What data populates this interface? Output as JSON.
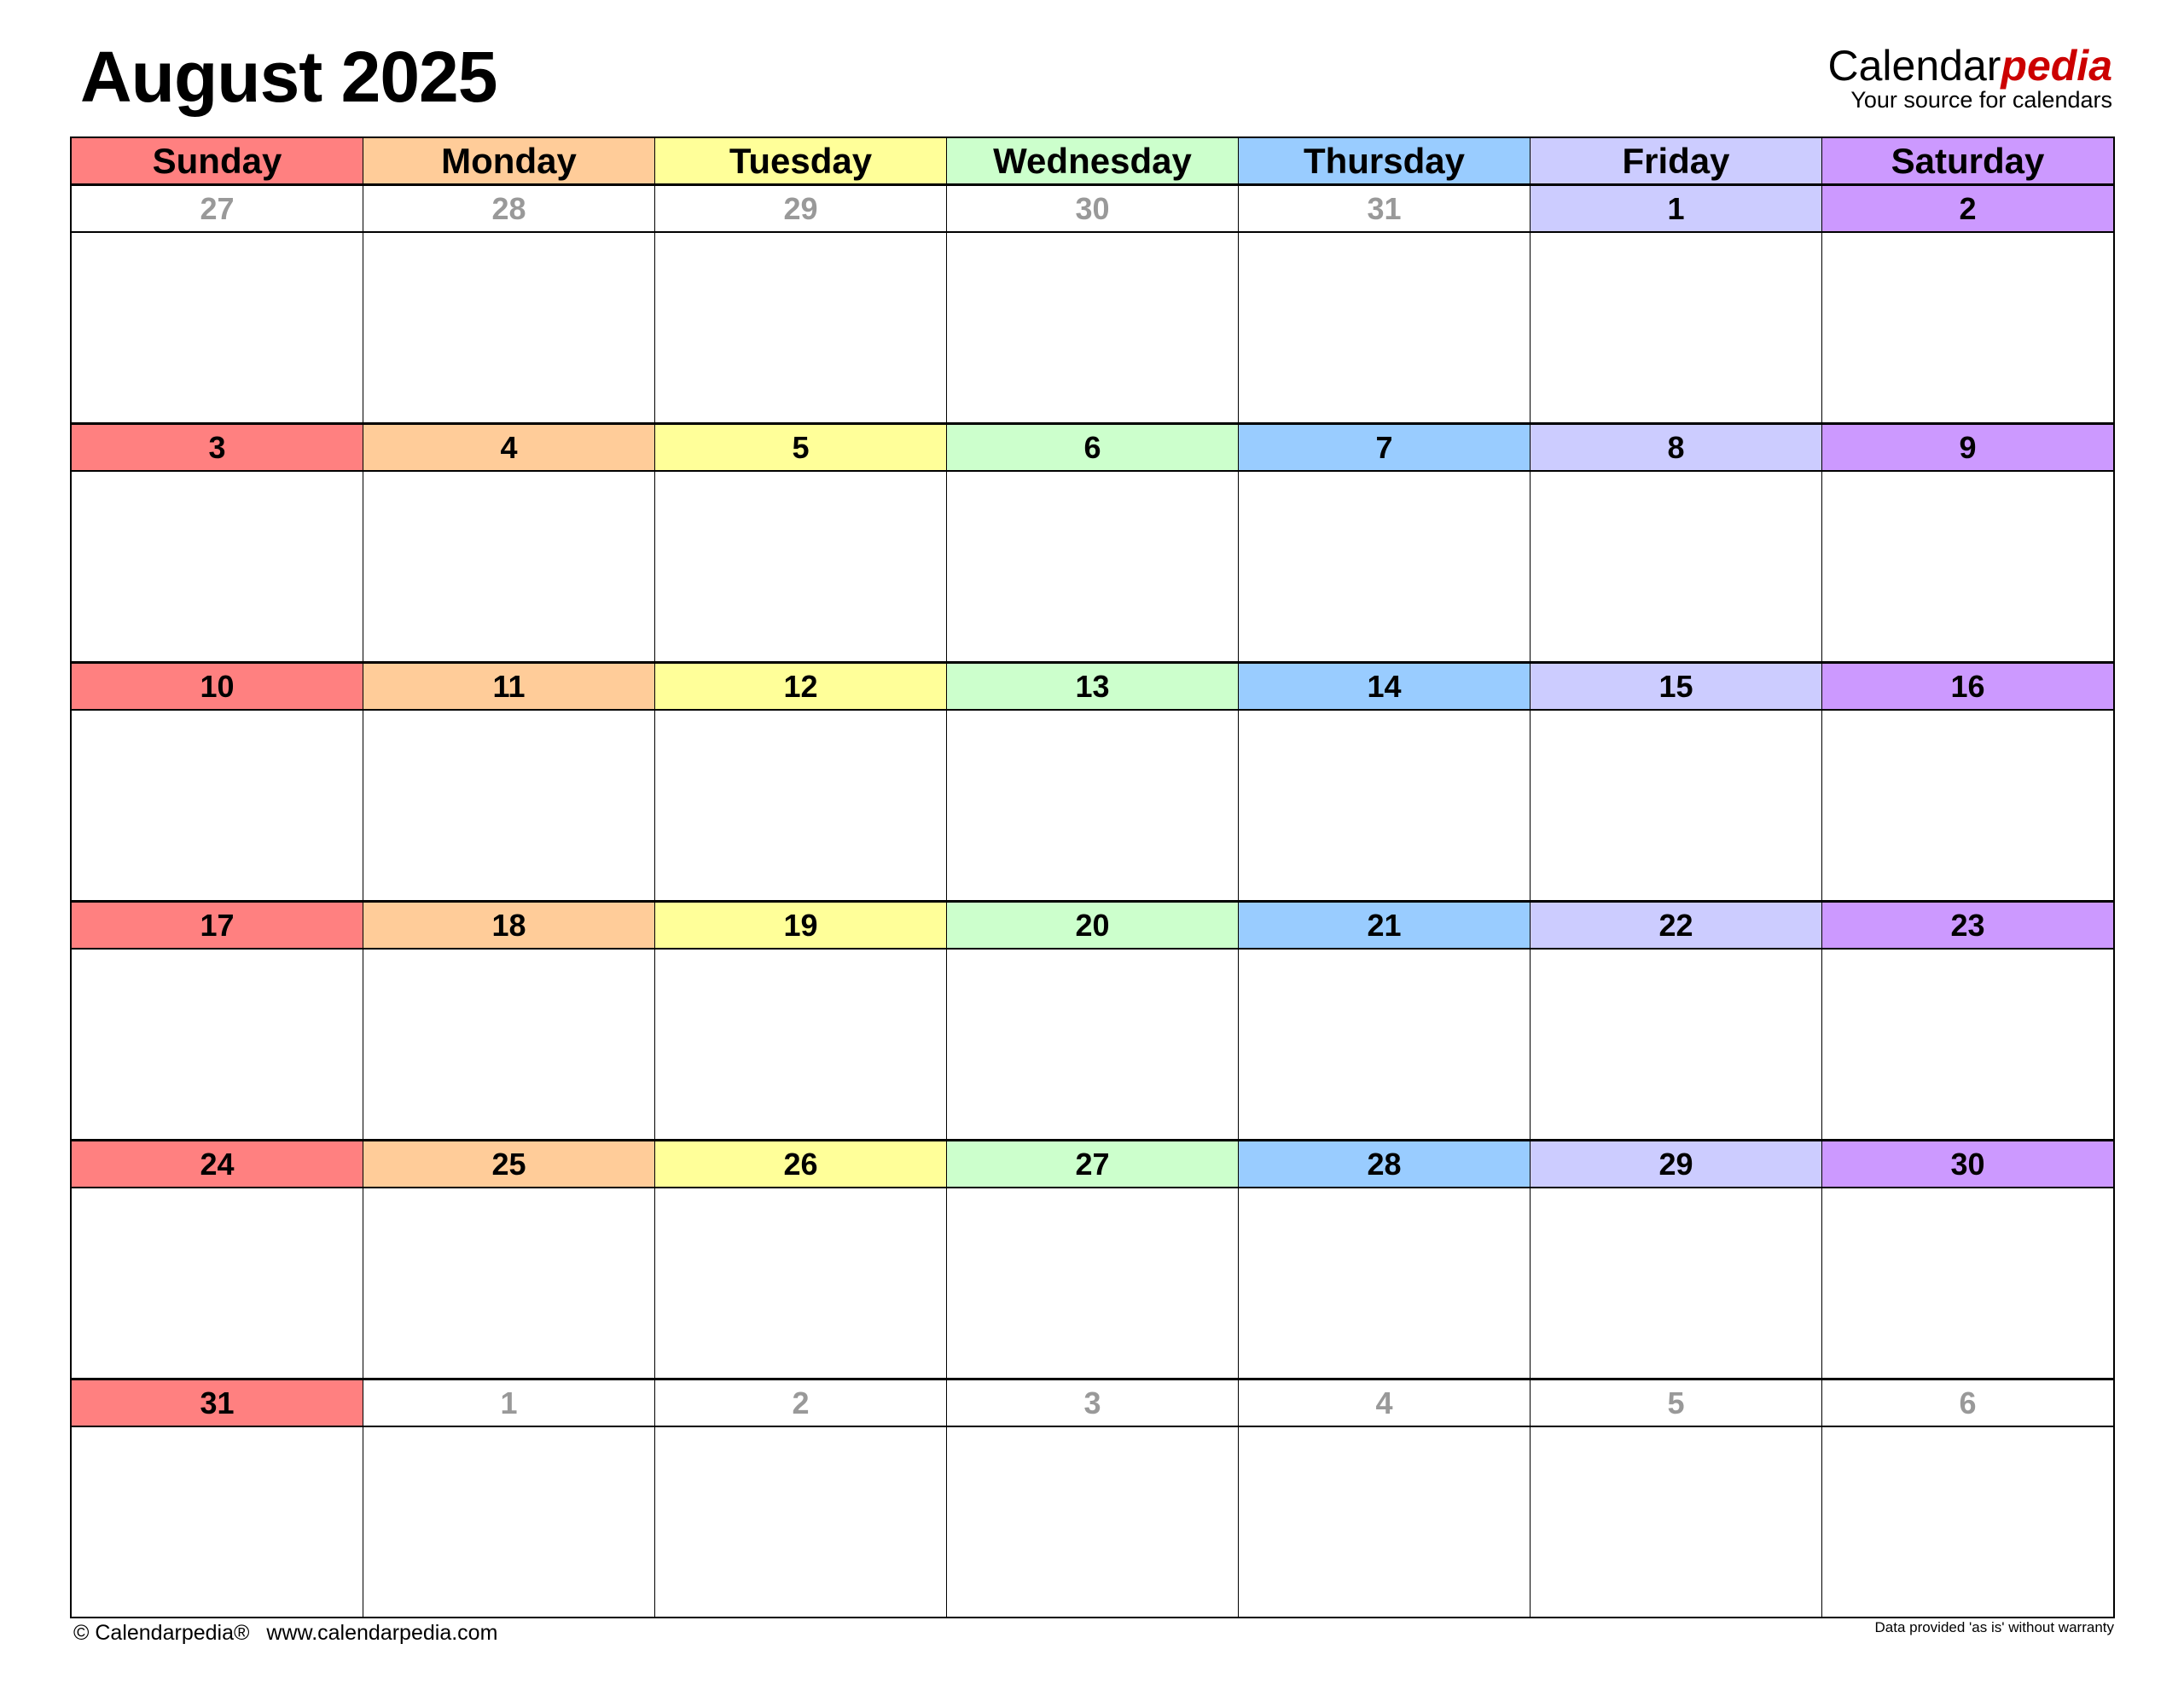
{
  "title": "August 2025",
  "logo": {
    "main": "Calendar",
    "accent": "pedia",
    "tagline": "Your source for calendars",
    "accent_color": "#cc0000"
  },
  "weekdays": [
    {
      "label": "Sunday",
      "color": "#FF8080"
    },
    {
      "label": "Monday",
      "color": "#FFCC99"
    },
    {
      "label": "Tuesday",
      "color": "#FFFF99"
    },
    {
      "label": "Wednesday",
      "color": "#CCFFCC"
    },
    {
      "label": "Thursday",
      "color": "#99CCFF"
    },
    {
      "label": "Friday",
      "color": "#CCCCFF"
    },
    {
      "label": "Saturday",
      "color": "#CC99FF"
    }
  ],
  "outside_month_color": "#999999",
  "weeks": [
    [
      {
        "day": "27",
        "in_month": false
      },
      {
        "day": "28",
        "in_month": false
      },
      {
        "day": "29",
        "in_month": false
      },
      {
        "day": "30",
        "in_month": false
      },
      {
        "day": "31",
        "in_month": false
      },
      {
        "day": "1",
        "in_month": true
      },
      {
        "day": "2",
        "in_month": true
      }
    ],
    [
      {
        "day": "3",
        "in_month": true
      },
      {
        "day": "4",
        "in_month": true
      },
      {
        "day": "5",
        "in_month": true
      },
      {
        "day": "6",
        "in_month": true
      },
      {
        "day": "7",
        "in_month": true
      },
      {
        "day": "8",
        "in_month": true
      },
      {
        "day": "9",
        "in_month": true
      }
    ],
    [
      {
        "day": "10",
        "in_month": true
      },
      {
        "day": "11",
        "in_month": true
      },
      {
        "day": "12",
        "in_month": true
      },
      {
        "day": "13",
        "in_month": true
      },
      {
        "day": "14",
        "in_month": true
      },
      {
        "day": "15",
        "in_month": true
      },
      {
        "day": "16",
        "in_month": true
      }
    ],
    [
      {
        "day": "17",
        "in_month": true
      },
      {
        "day": "18",
        "in_month": true
      },
      {
        "day": "19",
        "in_month": true
      },
      {
        "day": "20",
        "in_month": true
      },
      {
        "day": "21",
        "in_month": true
      },
      {
        "day": "22",
        "in_month": true
      },
      {
        "day": "23",
        "in_month": true
      }
    ],
    [
      {
        "day": "24",
        "in_month": true
      },
      {
        "day": "25",
        "in_month": true
      },
      {
        "day": "26",
        "in_month": true
      },
      {
        "day": "27",
        "in_month": true
      },
      {
        "day": "28",
        "in_month": true
      },
      {
        "day": "29",
        "in_month": true
      },
      {
        "day": "30",
        "in_month": true
      }
    ],
    [
      {
        "day": "31",
        "in_month": true
      },
      {
        "day": "1",
        "in_month": false
      },
      {
        "day": "2",
        "in_month": false
      },
      {
        "day": "3",
        "in_month": false
      },
      {
        "day": "4",
        "in_month": false
      },
      {
        "day": "5",
        "in_month": false
      },
      {
        "day": "6",
        "in_month": false
      }
    ]
  ],
  "footer": {
    "copyright": "© Calendarpedia®",
    "url": "www.calendarpedia.com",
    "disclaimer": "Data provided 'as is' without warranty"
  }
}
